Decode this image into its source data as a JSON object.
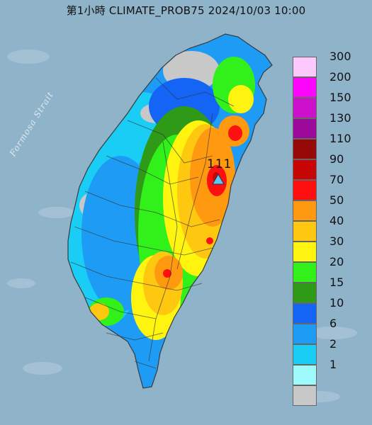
{
  "title": "第1小時  CLIMATE_PROB75 2024/10/03 10:00",
  "sea_label": "Formosa Strait",
  "peak_label": "111",
  "marker_icon": "triangle-marker-icon",
  "colors": {
    "sea": "#8fb3c9",
    "land_outline": "#3a3a3a",
    "marker": "#5ec8f0"
  },
  "legend": [
    {
      "label": "300",
      "color": "#fdc9fd"
    },
    {
      "label": "200",
      "color": "#fc06fc"
    },
    {
      "label": "150",
      "color": "#cc10cc"
    },
    {
      "label": "130",
      "color": "#9c0a9c"
    },
    {
      "label": "110",
      "color": "#960909"
    },
    {
      "label": "90",
      "color": "#c80606"
    },
    {
      "label": "70",
      "color": "#ff1010"
    },
    {
      "label": "50",
      "color": "#ff9a10"
    },
    {
      "label": "40",
      "color": "#ffc810"
    },
    {
      "label": "30",
      "color": "#fff410"
    },
    {
      "label": "20",
      "color": "#32f019"
    },
    {
      "label": "15",
      "color": "#2e9a18"
    },
    {
      "label": "10",
      "color": "#1464f5"
    },
    {
      "label": "6",
      "color": "#1e9bf5"
    },
    {
      "label": "2",
      "color": "#19cdf5"
    },
    {
      "label": "1",
      "color": "#9ffbfb"
    },
    {
      "label": "",
      "color": "#c8c8c8"
    }
  ]
}
